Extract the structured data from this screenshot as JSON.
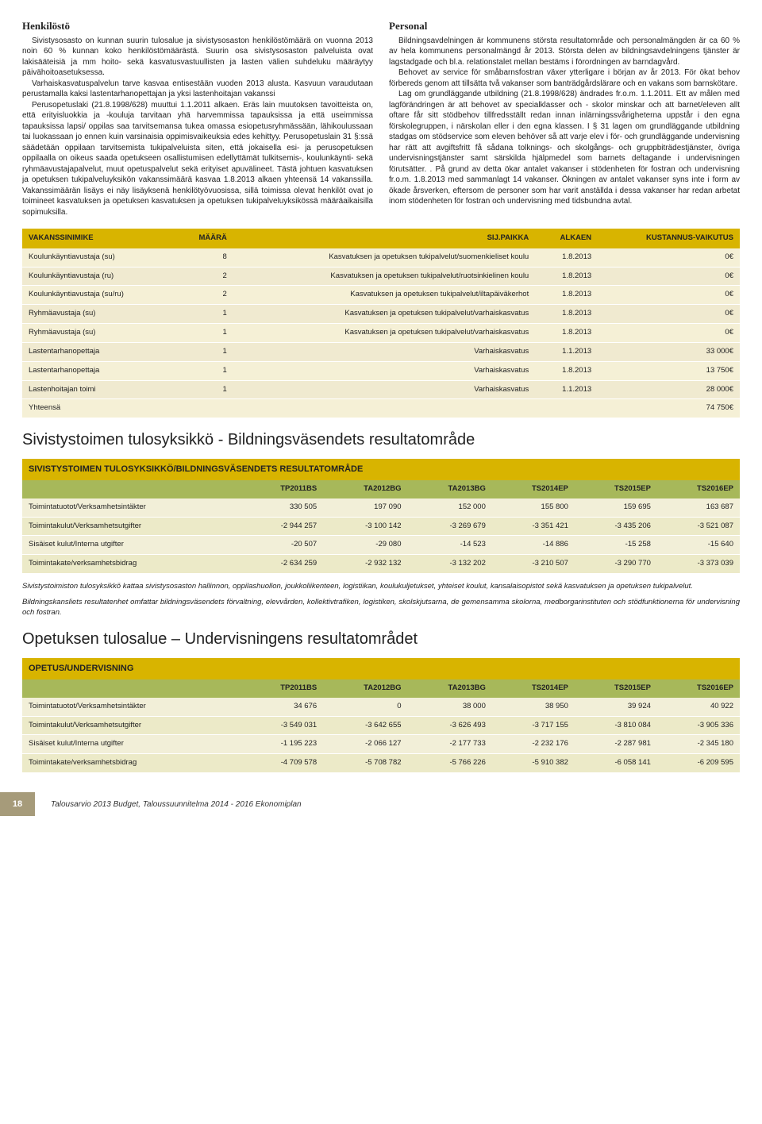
{
  "left": {
    "heading": "Henkilöstö",
    "p1": "Sivistysosasto on kunnan suurin tulosalue ja sivistysosaston henkilöstömäärä on vuonna 2013 noin 60 % kunnan koko henkilöstömäärästä. Suurin osa sivistysosaston palveluista ovat lakisääteisiä ja mm hoito- sekä kasvatusvastuullisten ja lasten välien suhdeluku määräytyy päivähoitoasetuksessa.",
    "p2": "Varhaiskasvatuspalvelun tarve kasvaa entisestään vuoden 2013 alusta. Kasvuun varaudutaan perustamalla kaksi lastentarhanopettajan ja yksi lastenhoitajan vakanssi",
    "p3": "Perusopetuslaki (21.8.1998/628) muuttui 1.1.2011 alkaen. Eräs lain muutoksen tavoitteista on, että erityisluokkia ja -kouluja tarvitaan yhä harvemmissa tapauksissa ja että useimmissa tapauksissa lapsi/ oppilas saa tarvitsemansa tukea omassa esiopetusryhmässään, lähikoulussaan tai luokassaan jo ennen kuin varsinaisia oppimisvaikeuksia edes kehittyy. Perusopetuslain 31 §:ssä säädetään oppilaan tarvitsemista tukipalveluista siten, että jokaisella esi- ja perusopetuksen oppilaalla on oikeus saada opetukseen osallistumisen edellyttämät tulkitsemis-, koulunkäynti- sekä ryhmäavustajapalvelut, muut opetuspalvelut sekä erityiset apuvälineet. Tästä johtuen kasvatuksen ja opetuksen tukipalveluyksikön vakanssimäärä kasvaa 1.8.2013 alkaen yhteensä 14 vakanssilla. Vakanssimäärän lisäys ei näy lisäyksenä henkilötyövuosissa, sillä toimissa olevat henkilöt ovat jo toimineet kasvatuksen ja opetuksen kasvatuksen ja opetuksen tukipalveluyksikössä määräaikaisilla sopimuksilla."
  },
  "right": {
    "heading": "Personal",
    "p1": "Bildningsavdelningen är kommunens största resultatområde och personalmängden är ca 60 % av hela kommunens personalmängd år 2013. Största delen av bildningsavdelningens tjänster är lagstadgade och bl.a. relationstalet mellan bestäms i förordningen av barndagvård.",
    "p2": "Behovet av service för småbarnsfostran växer ytterligare i början av år 2013. För ökat behov förbereds genom att tillsätta två vakanser som banträdgårdslärare och en vakans som barnskötare.",
    "p3": "Lag om grundläggande utbildning (21.8.1998/628) ändrades fr.o.m. 1.1.2011.  Ett av målen med lagförändringen är att behovet av specialklasser och - skolor minskar och att barnet/eleven allt oftare får sitt stödbehov tillfredsställt redan innan inlärningssvårigheterna uppstår i den egna förskolegruppen, i närskolan eller i den egna klassen. I § 31 lagen om grundläggande utbildning stadgas om stödservice som eleven behöver så att varje elev i för- och grundläggande undervisning har rätt att avgiftsfritt få sådana tolknings- och skolgångs- och gruppbiträdestjänster, övriga undervisningstjänster samt särskilda hjälpmedel som barnets deltagande i undervisningen förutsätter. . På grund av detta ökar antalet vakanser i stödenheten för fostran och undervisning fr.o.m. 1.8.2013 med sammanlagt 14 vakanser. Ökningen av antalet vakanser syns inte i form av ökade årsverken, eftersom de personer som har varit anställda i dessa vakanser har redan arbetat inom stödenheten för fostran och undervisning med tidsbundna avtal."
  },
  "vakanssi": {
    "headers": [
      "VAKANSSINIMIKE",
      "MÄÄRÄ",
      "SIJ.PAIKKA",
      "ALKAEN",
      "KUSTANNUS-VAIKUTUS"
    ],
    "rows": [
      [
        "Koulunkäyntiavustaja (su)",
        "8",
        "Kasvatuksen ja opetuksen tukipalvelut/suomenkieliset koulu",
        "1.8.2013",
        "0€"
      ],
      [
        "Koulunkäyntiavustaja (ru)",
        "2",
        "Kasvatuksen ja opetuksen tukipalvelut/ruotsinkielinen koulu",
        "1.8.2013",
        "0€"
      ],
      [
        "Koulunkäyntiavustaja (su/ru)",
        "2",
        "Kasvatuksen ja opetuksen tukipalvelut/iltapäiväkerhot",
        "1.8.2013",
        "0€"
      ],
      [
        "Ryhmäavustaja (su)",
        "1",
        "Kasvatuksen ja opetuksen tukipalvelut/varhaiskasvatus",
        "1.8.2013",
        "0€"
      ],
      [
        "Ryhmäavustaja (su)",
        "1",
        "Kasvatuksen ja opetuksen tukipalvelut/varhaiskasvatus",
        "1.8.2013",
        "0€"
      ],
      [
        "Lastentarhanopettaja",
        "1",
        "Varhaiskasvatus",
        "1.1.2013",
        "33 000€"
      ],
      [
        "Lastentarhanopettaja",
        "1",
        "Varhaiskasvatus",
        "1.8.2013",
        "13 750€"
      ],
      [
        "Lastenhoitajan toimi",
        "1",
        "Varhaiskasvatus",
        "1.1.2013",
        "28 000€"
      ],
      [
        "Yhteensä",
        "",
        "",
        "",
        "74 750€"
      ]
    ]
  },
  "section2Heading": "Sivistystoimen tulosyksikkö - Bildningsväsendets resultatområde",
  "sivistys": {
    "title": "SIVISTYSTOIMEN TULOSYKSIKKÖ/BILDNINGSVÄSENDETS RESULTATOMRÅDE",
    "cols": [
      "",
      "TP2011BS",
      "TA2012BG",
      "TA2013BG",
      "TS2014EP",
      "TS2015EP",
      "TS2016EP"
    ],
    "rows": [
      [
        "Toimintatuotot/Verksamhetsintäkter",
        "330 505",
        "197 090",
        "152 000",
        "155 800",
        "159 695",
        "163 687"
      ],
      [
        "Toimintakulut/Verksamhetsutgifter",
        "-2 944 257",
        "-3 100 142",
        "-3 269 679",
        "-3 351 421",
        "-3 435 206",
        "-3 521 087"
      ],
      [
        "Sisäiset kulut/Interna utgifter",
        "-20 507",
        "-29 080",
        "-14 523",
        "-14 886",
        "-15 258",
        "-15 640"
      ],
      [
        "Toimintakate/verksamhetsbidrag",
        "-2 634 259",
        "-2 932 132",
        "-3 132 202",
        "-3 210 507",
        "-3 290 770",
        "-3 373 039"
      ]
    ]
  },
  "note1": "Sivistystoimiston tulosyksikkö kattaa sivistysosaston hallinnon, oppilashuollon, joukkoliikenteen, logistiikan, koulukuljetukset, yhteiset koulut, kansalaisopistot sekä kasvatuksen ja opetuksen tukipalvelut.",
  "note2": "Bildningskansliets resultatenhet omfattar bildningsväsendets förvaltning, elevvården, kollektivtrafiken, logistiken, skolskjutsarna, de gemensamma skolorna, medborgarinstituten och stödfunktionerna för undervisning och fostran.",
  "section3Heading": "Opetuksen tulosalue – Undervisningens resultatområdet",
  "opetus": {
    "title": "OPETUS/UNDERVISNING",
    "cols": [
      "",
      "TP2011BS",
      "TA2012BG",
      "TA2013BG",
      "TS2014EP",
      "TS2015EP",
      "TS2016EP"
    ],
    "rows": [
      [
        "Toimintatuotot/Verksamhetsintäkter",
        "34 676",
        "0",
        "38 000",
        "38 950",
        "39 924",
        "40 922"
      ],
      [
        "Toimintakulut/Verksamhetsutgifter",
        "-3 549 031",
        "-3 642 655",
        "-3 626 493",
        "-3 717 155",
        "-3 810 084",
        "-3 905 336"
      ],
      [
        "Sisäiset kulut/Interna utgifter",
        "-1 195 223",
        "-2 066 127",
        "-2 177 733",
        "-2 232 176",
        "-2 287 981",
        "-2 345 180"
      ],
      [
        "Toimintakate/verksamhetsbidrag",
        "-4 709 578",
        "-5 708 782",
        "-5 766 226",
        "-5 910 382",
        "-6 058 141",
        "-6 209 595"
      ]
    ]
  },
  "pageNum": "18",
  "footerText": "Talousarvio 2013 Budget, Taloussuunnitelma 2014 - 2016 Ekonomiplan"
}
